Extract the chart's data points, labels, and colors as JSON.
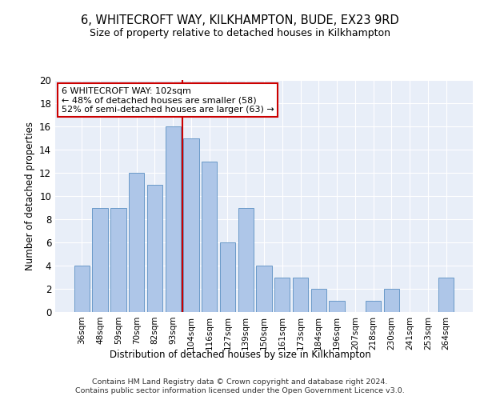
{
  "title1": "6, WHITECROFT WAY, KILKHAMPTON, BUDE, EX23 9RD",
  "title2": "Size of property relative to detached houses in Kilkhampton",
  "xlabel": "Distribution of detached houses by size in Kilkhampton",
  "ylabel": "Number of detached properties",
  "categories": [
    "36sqm",
    "48sqm",
    "59sqm",
    "70sqm",
    "82sqm",
    "93sqm",
    "104sqm",
    "116sqm",
    "127sqm",
    "139sqm",
    "150sqm",
    "161sqm",
    "173sqm",
    "184sqm",
    "196sqm",
    "207sqm",
    "218sqm",
    "230sqm",
    "241sqm",
    "253sqm",
    "264sqm"
  ],
  "values": [
    4,
    9,
    9,
    12,
    11,
    16,
    15,
    13,
    6,
    9,
    4,
    3,
    3,
    2,
    1,
    0,
    1,
    2,
    0,
    0,
    3
  ],
  "bar_color": "#aec6e8",
  "bar_edge_color": "#5a8fc2",
  "vline_color": "#cc0000",
  "ylim": [
    0,
    20
  ],
  "yticks": [
    0,
    2,
    4,
    6,
    8,
    10,
    12,
    14,
    16,
    18,
    20
  ],
  "annotation_text": "6 WHITECROFT WAY: 102sqm\n← 48% of detached houses are smaller (58)\n52% of semi-detached houses are larger (63) →",
  "annotation_box_color": "#ffffff",
  "annotation_box_edge": "#cc0000",
  "footer1": "Contains HM Land Registry data © Crown copyright and database right 2024.",
  "footer2": "Contains public sector information licensed under the Open Government Licence v3.0.",
  "plot_bg_color": "#e8eef8"
}
